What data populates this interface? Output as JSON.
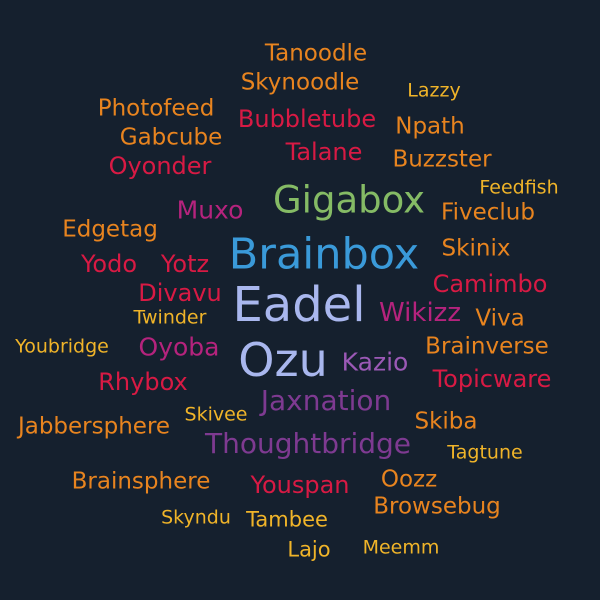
{
  "words": [
    {
      "text": "Tanoodle",
      "color": "#e8841f"
    },
    {
      "text": "Skynoodle",
      "color": "#e8841f"
    },
    {
      "text": "Lazzy",
      "color": "#f0b429"
    },
    {
      "text": "Photofeed",
      "color": "#e8841f"
    },
    {
      "text": "Bubbletube",
      "color": "#d81a44"
    },
    {
      "text": "Npath",
      "color": "#e8841f"
    },
    {
      "text": "Gabcube",
      "color": "#e8841f"
    },
    {
      "text": "Talane",
      "color": "#d81a44"
    },
    {
      "text": "Oyonder",
      "color": "#d81a44"
    },
    {
      "text": "Buzzster",
      "color": "#e8841f"
    },
    {
      "text": "Feedfish",
      "color": "#f0b429"
    },
    {
      "text": "Gigabox",
      "color": "#85bb65"
    },
    {
      "text": "Muxo",
      "color": "#b5237d"
    },
    {
      "text": "Fiveclub",
      "color": "#e8841f"
    },
    {
      "text": "Edgetag",
      "color": "#e8841f"
    },
    {
      "text": "Brainbox",
      "color": "#3a9ad9"
    },
    {
      "text": "Skinix",
      "color": "#e8841f"
    },
    {
      "text": "Yodo",
      "color": "#d81a44"
    },
    {
      "text": "Yotz",
      "color": "#d81a44"
    },
    {
      "text": "Camimbo",
      "color": "#d81a44"
    },
    {
      "text": "Divavu",
      "color": "#d81a44"
    },
    {
      "text": "Eadel",
      "color": "#a9b7ee"
    },
    {
      "text": "Wikizz",
      "color": "#b5237d"
    },
    {
      "text": "Viva",
      "color": "#e8841f"
    },
    {
      "text": "Twinder",
      "color": "#f0b429"
    },
    {
      "text": "Youbridge",
      "color": "#f0b429"
    },
    {
      "text": "Oyoba",
      "color": "#b5237d"
    },
    {
      "text": "Ozu",
      "color": "#a9b7ee"
    },
    {
      "text": "Kazio",
      "color": "#9b59b6"
    },
    {
      "text": "Brainverse",
      "color": "#e8841f"
    },
    {
      "text": "Rhybox",
      "color": "#d81a44"
    },
    {
      "text": "Topicware",
      "color": "#d81a44"
    },
    {
      "text": "Jaxnation",
      "color": "#7e3a91"
    },
    {
      "text": "Skivee",
      "color": "#f0b429"
    },
    {
      "text": "Jabbersphere",
      "color": "#e8841f"
    },
    {
      "text": "Skiba",
      "color": "#e8841f"
    },
    {
      "text": "Thoughtbridge",
      "color": "#7e3a91"
    },
    {
      "text": "Tagtune",
      "color": "#f0b429"
    },
    {
      "text": "Brainsphere",
      "color": "#e8841f"
    },
    {
      "text": "Youspan",
      "color": "#d81a44"
    },
    {
      "text": "Oozz",
      "color": "#e8841f"
    },
    {
      "text": "Browsebug",
      "color": "#e8841f"
    },
    {
      "text": "Skyndu",
      "color": "#f0b429"
    },
    {
      "text": "Tambee",
      "color": "#f0b429"
    },
    {
      "text": "Lajo",
      "color": "#f0b429"
    },
    {
      "text": "Meemm",
      "color": "#f0b429"
    }
  ]
}
